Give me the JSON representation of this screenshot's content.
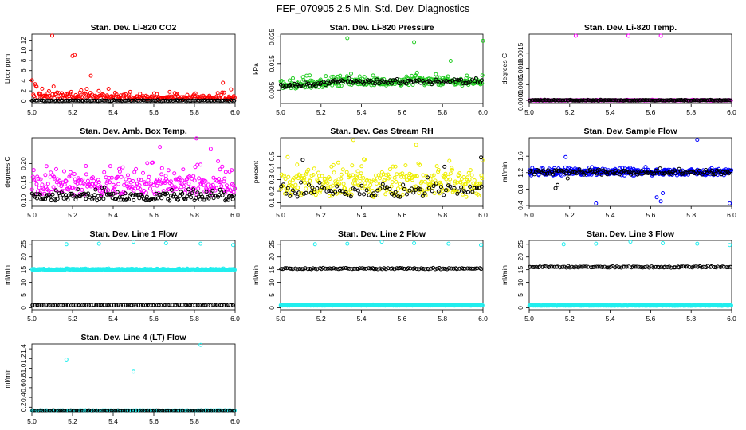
{
  "title": "FEF_070905  2.5 Min. Std. Dev. Diagnostics",
  "chart_data": [
    {
      "type": "scatter",
      "title": "Stan. Dev. Li-820 CO2",
      "ylabel": "Licor ppm",
      "xlim": [
        5.0,
        6.0
      ],
      "ylim": [
        -0.5,
        13.2
      ],
      "xticks": [
        "5.0",
        "5.2",
        "5.4",
        "5.6",
        "5.8",
        "6.0"
      ],
      "yticks": [
        "0",
        "2",
        "4",
        "6",
        "8",
        "10",
        "12"
      ],
      "colors": [
        "#ff0000",
        "#000000"
      ],
      "series": [
        {
          "color": "#ff0000",
          "base": 0.6,
          "spread": 1.1,
          "decay": 2.2,
          "startBoost": 3.5,
          "n": 220,
          "jitter": 0.3,
          "outliers": [
            [
              5.1,
              12.9
            ],
            [
              5.2,
              8.9
            ],
            [
              5.21,
              9.1
            ],
            [
              5.29,
              5.0
            ],
            [
              5.94,
              3.6
            ],
            [
              5.98,
              2.3
            ]
          ]
        },
        {
          "color": "#000000",
          "base": 0.05,
          "spread": 0.1,
          "n": 120,
          "jitter": 0.05,
          "outliers": []
        }
      ]
    },
    {
      "type": "scatter",
      "title": "Stan. Dev. Li-820 Pressure",
      "ylabel": "kPa",
      "xlim": [
        5.0,
        6.0
      ],
      "ylim": [
        0.0,
        0.026
      ],
      "xticks": [
        "5.0",
        "5.2",
        "5.4",
        "5.6",
        "5.8",
        "6.0"
      ],
      "yticks": [
        "0.005",
        "0.015",
        "0.025"
      ],
      "colors": [
        "#00cc00",
        "#000000"
      ],
      "series": [
        {
          "color": "#22cc22",
          "base": 0.0065,
          "spread": 0.0025,
          "trend": 0.0015,
          "n": 300,
          "jitter": 0.0013,
          "outliers": [
            [
              5.33,
              0.0245
            ],
            [
              5.66,
              0.023
            ],
            [
              5.84,
              0.016
            ],
            [
              6.0,
              0.0235
            ]
          ]
        },
        {
          "color": "#000000",
          "base": 0.0065,
          "spread": 0.0008,
          "trend": 0.0015,
          "n": 110,
          "jitter": 0.0008,
          "outliers": []
        }
      ]
    },
    {
      "type": "scatter",
      "title": "Stan. Dev. Li-820 Temp.",
      "ylabel": "degrees C",
      "xlim": [
        5.0,
        6.0
      ],
      "ylim": [
        -0.0001,
        0.0021
      ],
      "xticks": [
        "5.0",
        "5.2",
        "5.4",
        "5.6",
        "5.8",
        "6.0"
      ],
      "yticks": [
        "0.0000",
        "0.0005",
        "0.0010",
        "0.0015"
      ],
      "colors": [
        "#ff00ff",
        "#000000"
      ],
      "series": [
        {
          "color": "#ff00ff",
          "base": 0.0,
          "spread": 1e-05,
          "n": 180,
          "jitter": 1e-05,
          "outliers": [
            [
              5.23,
              0.00205
            ],
            [
              5.49,
              0.00205
            ],
            [
              5.65,
              0.00205
            ]
          ]
        },
        {
          "color": "#000000",
          "base": 0.0,
          "spread": 1e-05,
          "n": 160,
          "jitter": 1e-05,
          "outliers": []
        }
      ]
    },
    {
      "type": "scatter",
      "title": "Stan. Dev. Amb. Box Temp.",
      "ylabel": "degrees C",
      "xlim": [
        5.0,
        6.0
      ],
      "ylim": [
        0.085,
        0.27
      ],
      "xticks": [
        "5.0",
        "5.2",
        "5.4",
        "5.6",
        "5.8",
        "6.0"
      ],
      "yticks": [
        "0.10",
        "0.15",
        "0.20"
      ],
      "colors": [
        "#ff00ff",
        "#000000"
      ],
      "series": [
        {
          "color": "#ff00ff",
          "base": 0.14,
          "spread": 0.05,
          "n": 280,
          "jitter": 0.025,
          "outliers": [
            [
              5.81,
              0.268
            ],
            [
              5.63,
              0.245
            ],
            [
              5.88,
              0.24
            ]
          ]
        },
        {
          "color": "#000000",
          "base": 0.11,
          "spread": 0.02,
          "n": 160,
          "jitter": 0.01,
          "outliers": []
        }
      ]
    },
    {
      "type": "scatter",
      "title": "Stan. Dev. Gas Stream RH",
      "ylabel": "percent",
      "xlim": [
        5.0,
        6.0
      ],
      "ylim": [
        0.07,
        0.66
      ],
      "xticks": [
        "5.0",
        "5.2",
        "5.4",
        "5.6",
        "5.8",
        "6.0"
      ],
      "yticks": [
        "0.1",
        "0.2",
        "0.3",
        "0.4",
        "0.5"
      ],
      "colors": [
        "#ffff00",
        "#000000"
      ],
      "series": [
        {
          "color": "#eeee00",
          "base": 0.25,
          "spread": 0.16,
          "n": 300,
          "jitter": 0.1,
          "outliers": [
            [
              5.36,
              0.64
            ],
            [
              5.67,
              0.6
            ]
          ]
        },
        {
          "color": "#000000",
          "base": 0.2,
          "spread": 0.08,
          "n": 90,
          "jitter": 0.05,
          "outliers": [
            [
              5.11,
              0.47
            ],
            [
              5.99,
              0.49
            ],
            [
              5.81,
              0.41
            ]
          ]
        }
      ]
    },
    {
      "type": "scatter",
      "title": "Stan. Dev. Sample Flow",
      "ylabel": "ml/min",
      "xlim": [
        5.0,
        6.0
      ],
      "ylim": [
        0.38,
        2.05
      ],
      "xticks": [
        "5.0",
        "5.2",
        "5.4",
        "5.6",
        "5.8",
        "6.0"
      ],
      "yticks": [
        "0.4",
        "0.8",
        "1.2",
        "1.6"
      ],
      "colors": [
        "#0000ff",
        "#000000"
      ],
      "series": [
        {
          "color": "#0000ff",
          "base": 1.2,
          "spread": 0.08,
          "n": 340,
          "jitter": 0.07,
          "outliers": [
            [
              5.83,
              2.0
            ],
            [
              5.18,
              1.58
            ],
            [
              5.65,
              0.5
            ],
            [
              5.33,
              0.45
            ],
            [
              5.99,
              0.45
            ],
            [
              5.63,
              0.6
            ],
            [
              5.66,
              0.7
            ]
          ]
        },
        {
          "color": "#000000",
          "base": 1.2,
          "spread": 0.06,
          "n": 130,
          "jitter": 0.05,
          "outliers": [
            [
              5.13,
              0.82
            ],
            [
              5.14,
              0.9
            ],
            [
              5.19,
              1.06
            ]
          ]
        }
      ]
    },
    {
      "type": "scatter",
      "title": "Stan. Dev. Line 1 Flow",
      "ylabel": "ml/min",
      "xlim": [
        5.0,
        6.0
      ],
      "ylim": [
        -0.8,
        26.5
      ],
      "xticks": [
        "5.0",
        "5.2",
        "5.4",
        "5.6",
        "5.8",
        "6.0"
      ],
      "yticks": [
        "0",
        "5",
        "10",
        "15",
        "20",
        "25"
      ],
      "colors": [
        "#00ffff",
        "#000000"
      ],
      "series": [
        {
          "color": "#22eeee",
          "base": 15.0,
          "spread": 0.3,
          "n": 360,
          "jitter": 0.25,
          "outliers": [
            [
              5.17,
              25.0
            ],
            [
              5.33,
              25.2
            ],
            [
              5.5,
              26.0
            ],
            [
              5.66,
              25.4
            ],
            [
              5.83,
              25.2
            ],
            [
              5.99,
              24.7
            ]
          ]
        },
        {
          "color": "#000000",
          "base": 1.0,
          "spread": 0.1,
          "n": 90,
          "jitter": 0.08,
          "outliers": []
        }
      ]
    },
    {
      "type": "scatter",
      "title": "Stan. Dev. Line 2 Flow",
      "ylabel": "ml/min",
      "xlim": [
        5.0,
        6.0
      ],
      "ylim": [
        -0.8,
        26.5
      ],
      "xticks": [
        "5.0",
        "5.2",
        "5.4",
        "5.6",
        "5.8",
        "6.0"
      ],
      "yticks": [
        "0",
        "5",
        "10",
        "15",
        "20",
        "25"
      ],
      "colors": [
        "#00ffff",
        "#000000"
      ],
      "series": [
        {
          "color": "#22eeee",
          "base": 1.0,
          "spread": 0.15,
          "n": 360,
          "jitter": 0.15,
          "outliers": [
            [
              5.17,
              25.0
            ],
            [
              5.33,
              25.2
            ],
            [
              5.5,
              26.0
            ],
            [
              5.66,
              25.4
            ],
            [
              5.83,
              25.2
            ],
            [
              5.99,
              24.7
            ]
          ]
        },
        {
          "color": "#000000",
          "base": 15.4,
          "spread": 0.3,
          "n": 100,
          "jitter": 0.2,
          "outliers": []
        }
      ]
    },
    {
      "type": "scatter",
      "title": "Stan. Dev. Line 3 Flow",
      "ylabel": "ml/min",
      "xlim": [
        5.0,
        6.0
      ],
      "ylim": [
        -0.8,
        26.5
      ],
      "xticks": [
        "5.0",
        "5.2",
        "5.4",
        "5.6",
        "5.8",
        "6.0"
      ],
      "yticks": [
        "0",
        "5",
        "10",
        "15",
        "20",
        "25"
      ],
      "colors": [
        "#00ffff",
        "#000000"
      ],
      "series": [
        {
          "color": "#22eeee",
          "base": 0.9,
          "spread": 0.12,
          "n": 360,
          "jitter": 0.12,
          "outliers": [
            [
              5.17,
              25.0
            ],
            [
              5.33,
              25.2
            ],
            [
              5.5,
              26.0
            ],
            [
              5.66,
              25.4
            ],
            [
              5.83,
              25.2
            ],
            [
              5.99,
              24.7
            ]
          ]
        },
        {
          "color": "#000000",
          "base": 16.0,
          "spread": 0.3,
          "n": 100,
          "jitter": 0.2,
          "outliers": []
        }
      ]
    },
    {
      "type": "scatter",
      "title": "Stan. Dev. Line 4 (LT) Flow",
      "ylabel": "ml/min",
      "xlim": [
        5.0,
        6.0
      ],
      "ylim": [
        0.09,
        1.5
      ],
      "xticks": [
        "5.0",
        "5.2",
        "5.4",
        "5.6",
        "5.8",
        "6.0"
      ],
      "yticks": [
        "0.2",
        "0.4",
        "0.6",
        "0.8",
        "1.0",
        "1.2",
        "1.4"
      ],
      "colors": [
        "#00ffff",
        "#000000"
      ],
      "series": [
        {
          "color": "#22eeee",
          "base": 0.13,
          "spread": 0.005,
          "n": 320,
          "jitter": 0.004,
          "outliers": [
            [
              5.17,
              1.18
            ],
            [
              5.5,
              0.93
            ],
            [
              5.83,
              1.48
            ]
          ]
        },
        {
          "color": "#000000",
          "base": 0.13,
          "spread": 0.004,
          "n": 100,
          "jitter": 0.003,
          "outliers": []
        }
      ]
    }
  ]
}
